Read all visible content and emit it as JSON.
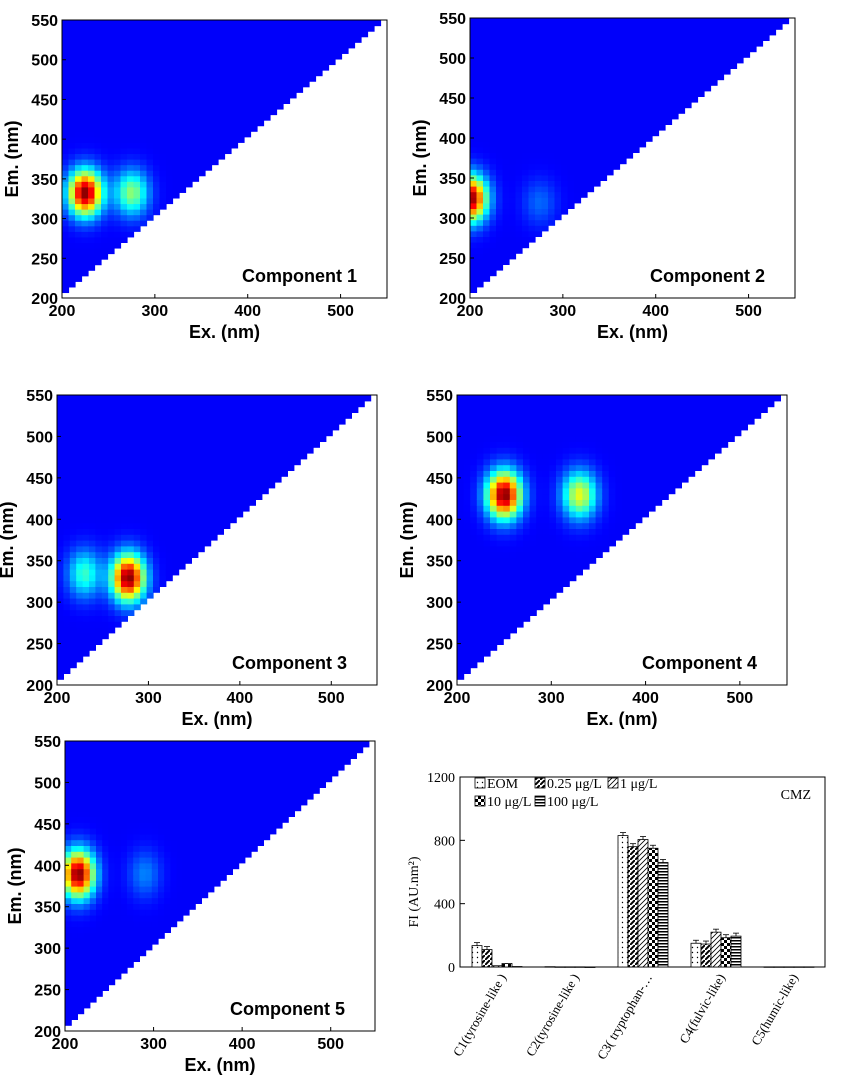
{
  "chart_data": [
    {
      "type": "heatmap",
      "title": "Component 1",
      "xlabel": "Ex. (nm)",
      "ylabel": "Em. (nm)",
      "xlim": [
        200,
        550
      ],
      "ylim": [
        200,
        550
      ],
      "x_ticks": [
        "200",
        "300",
        "400",
        "500"
      ],
      "y_ticks": [
        "200",
        "250",
        "300",
        "350",
        "400",
        "450",
        "500",
        "550"
      ],
      "peaks": [
        {
          "ex": 225,
          "em": 333,
          "intensity": 1.0
        },
        {
          "ex": 275,
          "em": 333,
          "intensity": 0.45
        }
      ]
    },
    {
      "type": "heatmap",
      "title": "Component 2",
      "xlabel": "Ex. (nm)",
      "ylabel": "Em. (nm)",
      "xlim": [
        200,
        550
      ],
      "ylim": [
        200,
        550
      ],
      "x_ticks": [
        "200",
        "300",
        "400",
        "500"
      ],
      "y_ticks": [
        "200",
        "250",
        "300",
        "350",
        "400",
        "450",
        "500",
        "550"
      ],
      "peaks": [
        {
          "ex": 200,
          "em": 325,
          "intensity": 1.0
        },
        {
          "ex": 275,
          "em": 320,
          "intensity": 0.12
        }
      ]
    },
    {
      "type": "heatmap",
      "title": "Component 3",
      "xlabel": "Ex. (nm)",
      "ylabel": "Em. (nm)",
      "xlim": [
        200,
        550
      ],
      "ylim": [
        200,
        550
      ],
      "x_ticks": [
        "200",
        "300",
        "400",
        "500"
      ],
      "y_ticks": [
        "200",
        "250",
        "300",
        "350",
        "400",
        "450",
        "500",
        "550"
      ],
      "peaks": [
        {
          "ex": 230,
          "em": 335,
          "intensity": 0.35
        },
        {
          "ex": 278,
          "em": 330,
          "intensity": 1.0
        }
      ]
    },
    {
      "type": "heatmap",
      "title": "Component 4",
      "xlabel": "Ex. (nm)",
      "ylabel": "Em. (nm)",
      "xlim": [
        200,
        550
      ],
      "ylim": [
        200,
        550
      ],
      "x_ticks": [
        "200",
        "300",
        "400",
        "500"
      ],
      "y_ticks": [
        "200",
        "250",
        "300",
        "350",
        "400",
        "450",
        "500",
        "550"
      ],
      "peaks": [
        {
          "ex": 250,
          "em": 430,
          "intensity": 1.0
        },
        {
          "ex": 330,
          "em": 430,
          "intensity": 0.55
        }
      ]
    },
    {
      "type": "heatmap",
      "title": "Component 5",
      "xlabel": "Ex. (nm)",
      "ylabel": "Em. (nm)",
      "xlim": [
        200,
        550
      ],
      "ylim": [
        200,
        550
      ],
      "x_ticks": [
        "200",
        "300",
        "400",
        "500"
      ],
      "y_ticks": [
        "200",
        "250",
        "300",
        "350",
        "400",
        "450",
        "500",
        "550"
      ],
      "peaks": [
        {
          "ex": 215,
          "em": 390,
          "intensity": 1.0
        },
        {
          "ex": 290,
          "em": 390,
          "intensity": 0.15
        }
      ]
    },
    {
      "type": "bar",
      "title": "",
      "annotation": "CMZ",
      "xlabel": "",
      "ylabel": "FI (AU.nm²)",
      "ylim": [
        0,
        1200
      ],
      "y_ticks": [
        "0",
        "400",
        "800",
        "1200"
      ],
      "categories": [
        "C1(tyrosine-like )",
        "C2(tyrosine-like )",
        "C3( tryptophan-…",
        "C4(fulvic-like)",
        "C5(humic-like)"
      ],
      "series": [
        {
          "name": "EOM",
          "values": [
            135,
            2,
            830,
            150,
            1
          ]
        },
        {
          "name": "0.25 μg/L",
          "values": [
            110,
            1,
            760,
            145,
            1
          ]
        },
        {
          "name": "1 μg/L",
          "values": [
            8,
            1,
            805,
            220,
            1
          ]
        },
        {
          "name": "10 μg/L",
          "values": [
            22,
            1,
            750,
            185,
            1
          ]
        },
        {
          "name": "100 μg/L",
          "values": [
            3,
            0,
            660,
            195,
            1
          ]
        }
      ],
      "legend_position": "top"
    }
  ]
}
